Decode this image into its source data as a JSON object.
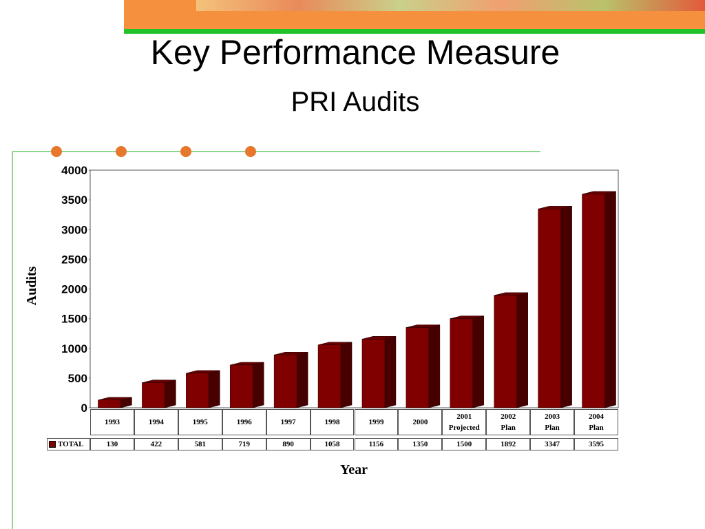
{
  "chart_data": {
    "type": "bar3d",
    "title": "Key Performance Measure",
    "subtitle": "PRI Audits",
    "y_label": "Audits",
    "x_label": "Year",
    "categories": [
      "1993",
      "1994",
      "1995",
      "1996",
      "1997",
      "1998",
      "1999",
      "2000",
      "2001 Projected",
      "2002 Plan",
      "2003 Plan",
      "2004 Plan"
    ],
    "series": [
      {
        "name": "TOTAL",
        "color": "#800000",
        "values": [
          130,
          422,
          581,
          719,
          890,
          1058,
          1156,
          1350,
          1500,
          1892,
          3347,
          3595
        ]
      }
    ],
    "ylim": [
      0,
      4000
    ],
    "yticks": [
      0,
      500,
      1000,
      1500,
      2000,
      2500,
      3000,
      3500,
      4000
    ]
  }
}
